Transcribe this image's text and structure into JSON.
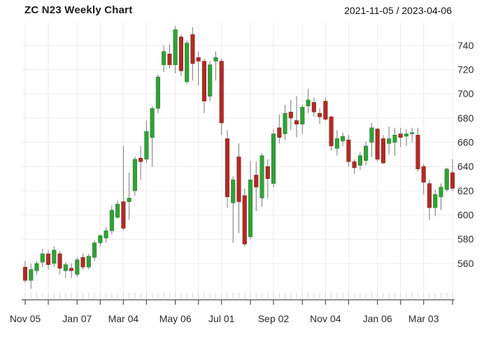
{
  "header": {
    "title": "ZC N23 Weekly Chart",
    "date_range": "2021-11-05 / 2023-04-06"
  },
  "chart_data": {
    "type": "candlestick",
    "title": "ZC N23 Weekly Chart",
    "date_range": "2021-11-05 / 2023-04-06",
    "symbol": "ZC N23",
    "interval": "weekly",
    "start_date": "2021-11-05",
    "end_date": "2023-04-06",
    "grid": true,
    "y_axis_side": "right",
    "ylim": [
      536,
      762
    ],
    "y_ticks": [
      560,
      580,
      600,
      620,
      640,
      660,
      680,
      700,
      720,
      740
    ],
    "x_ticks": [
      {
        "week": 0,
        "label": "Nov 05"
      },
      {
        "week": 4,
        "label": ""
      },
      {
        "week": 9,
        "label": "Jan 07"
      },
      {
        "week": 13,
        "label": ""
      },
      {
        "week": 17,
        "label": "Mar 04"
      },
      {
        "week": 21,
        "label": ""
      },
      {
        "week": 26,
        "label": "May 06"
      },
      {
        "week": 30,
        "label": ""
      },
      {
        "week": 34,
        "label": "Jul 01"
      },
      {
        "week": 39,
        "label": ""
      },
      {
        "week": 43,
        "label": "Sep 02"
      },
      {
        "week": 48,
        "label": ""
      },
      {
        "week": 52,
        "label": "Nov 04"
      },
      {
        "week": 56,
        "label": ""
      },
      {
        "week": 61,
        "label": "Jan 06"
      },
      {
        "week": 65,
        "label": ""
      },
      {
        "week": 69,
        "label": "Mar 03"
      },
      {
        "week": 74,
        "label": ""
      }
    ],
    "ohlc_columns": [
      "open",
      "high",
      "low",
      "close"
    ],
    "ohlc": [
      [
        557,
        562,
        544,
        546
      ],
      [
        546,
        560,
        539,
        555
      ],
      [
        554,
        562,
        551,
        560
      ],
      [
        561,
        572,
        557,
        568
      ],
      [
        568,
        571,
        555,
        559
      ],
      [
        560,
        574,
        557,
        571
      ],
      [
        568,
        570,
        551,
        556
      ],
      [
        554,
        561,
        548,
        559
      ],
      [
        556,
        560,
        548,
        554
      ],
      [
        551,
        565,
        549,
        563
      ],
      [
        565,
        568,
        555,
        557
      ],
      [
        557,
        568,
        555,
        566
      ],
      [
        565,
        579,
        562,
        577
      ],
      [
        577,
        584,
        574,
        583
      ],
      [
        581,
        590,
        577,
        587
      ],
      [
        587,
        608,
        584,
        604
      ],
      [
        598,
        612,
        597,
        609
      ],
      [
        611,
        657,
        587,
        589
      ],
      [
        611,
        635,
        596,
        614
      ],
      [
        620,
        648,
        616,
        646
      ],
      [
        647,
        657,
        629,
        644
      ],
      [
        646,
        678,
        643,
        669
      ],
      [
        664,
        690,
        640,
        688
      ],
      [
        688,
        716,
        684,
        714
      ],
      [
        724,
        740,
        718,
        735
      ],
      [
        733,
        741,
        721,
        724
      ],
      [
        724,
        756,
        717,
        753
      ],
      [
        747,
        749,
        715,
        719
      ],
      [
        710,
        744,
        708,
        742
      ],
      [
        749,
        755,
        711,
        725
      ],
      [
        730,
        735,
        707,
        727
      ],
      [
        727,
        729,
        684,
        694
      ],
      [
        698,
        727,
        694,
        724
      ],
      [
        727,
        735,
        711,
        730
      ],
      [
        727,
        729,
        666,
        676
      ],
      [
        663,
        670,
        606,
        615
      ],
      [
        610,
        632,
        577,
        629
      ],
      [
        648,
        659,
        585,
        611
      ],
      [
        616,
        622,
        574,
        576
      ],
      [
        582,
        645,
        580,
        629
      ],
      [
        633,
        644,
        603,
        623
      ],
      [
        614,
        651,
        607,
        649
      ],
      [
        640,
        646,
        614,
        630
      ],
      [
        626,
        671,
        623,
        667
      ],
      [
        672,
        683,
        659,
        664
      ],
      [
        667,
        691,
        662,
        684
      ],
      [
        685,
        695,
        670,
        680
      ],
      [
        678,
        698,
        664,
        675
      ],
      [
        675,
        691,
        667,
        689
      ],
      [
        690,
        704,
        684,
        695
      ],
      [
        693,
        697,
        681,
        685
      ],
      [
        684,
        688,
        675,
        681
      ],
      [
        694,
        697,
        678,
        679
      ],
      [
        681,
        682,
        653,
        657
      ],
      [
        655,
        670,
        649,
        663
      ],
      [
        661,
        668,
        657,
        665
      ],
      [
        662,
        666,
        640,
        644
      ],
      [
        644,
        646,
        634,
        639
      ],
      [
        641,
        652,
        637,
        649
      ],
      [
        645,
        661,
        641,
        657
      ],
      [
        660,
        676,
        648,
        672
      ],
      [
        671,
        672,
        644,
        646
      ],
      [
        663,
        666,
        642,
        643
      ],
      [
        659,
        673,
        650,
        663
      ],
      [
        660,
        672,
        649,
        666
      ],
      [
        667,
        672,
        656,
        664
      ],
      [
        665,
        671,
        657,
        667
      ],
      [
        667,
        672,
        660,
        668
      ],
      [
        666,
        672,
        636,
        638
      ],
      [
        640,
        642,
        617,
        627
      ],
      [
        626,
        629,
        596,
        606
      ],
      [
        606,
        621,
        599,
        617
      ],
      [
        615,
        626,
        604,
        623
      ],
      [
        621,
        639,
        619,
        638
      ],
      [
        635,
        646,
        620,
        622
      ]
    ],
    "colors": {
      "up": "#31A138",
      "up_border": "#23772A",
      "down": "#B02B25",
      "down_border": "#82201C",
      "wick": "#787878",
      "grid": "#EBEBEB",
      "minor_stub": "#D4D4D4",
      "axis": "#4D4D4D",
      "tick_text": "#2B2B2B"
    }
  }
}
